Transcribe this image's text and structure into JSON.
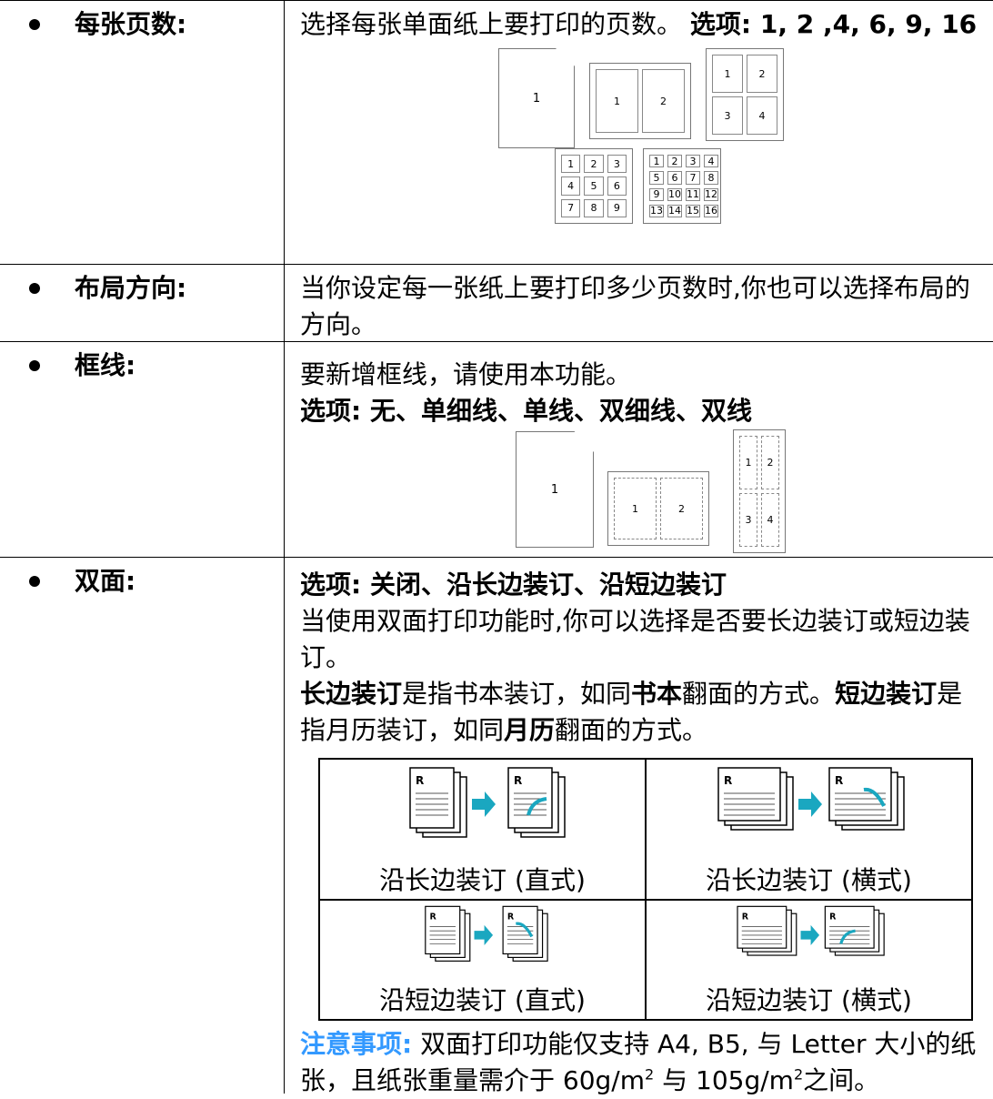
{
  "rows": [
    {
      "label": "每张页数:",
      "text": "选择每张单面纸上要打印的页数。",
      "options": "选项: 1, 2 ,4, 6, 9, 16",
      "layouts": [
        [
          1
        ],
        [
          1,
          2
        ],
        [
          1,
          2,
          3,
          4
        ],
        [
          1,
          2,
          3,
          4,
          5,
          6,
          7,
          8,
          9
        ],
        [
          1,
          2,
          3,
          4,
          5,
          6,
          7,
          8,
          9,
          10,
          11,
          12,
          13,
          14,
          15,
          16
        ]
      ]
    },
    {
      "label": "布局方向:",
      "text": "当你设定每一张纸上要打印多少页数时,你也可以选择布局的方向。"
    },
    {
      "label": "框线:",
      "text": "要新增框线，请使用本功能。",
      "options": "选项:  无、单细线、单线、双细线、双线",
      "layouts": [
        [
          1
        ],
        [
          1,
          2
        ],
        [
          1,
          2,
          3,
          4
        ]
      ]
    },
    {
      "label": "双面:",
      "options": "选项: 关闭、沿长边装订、沿短边装订",
      "text": "当使用双面打印功能时,你可以选择是否要长边装订或短边装订。",
      "explanation": [
        "长边装订",
        "是指书本装订，如同",
        "书本",
        "翻面的方式。",
        "短边装订",
        "是指月历装订，如同",
        "月历",
        "翻面的方式。"
      ],
      "binding_table": [
        [
          "沿长边装订 (直式)",
          "沿长边装订 (横式)"
        ],
        [
          "沿短边装订 (直式)",
          "沿短边装订 (横式)"
        ]
      ],
      "icon_letter": "R",
      "note": {
        "label": "注意事项:",
        "parts": [
          "双面打印功能仅支持 A4, B5, 与 Letter 大小的纸张，且纸张重量需介于 60g/m",
          "2",
          " 与  105g/m",
          "2",
          "之间。"
        ]
      }
    }
  ]
}
